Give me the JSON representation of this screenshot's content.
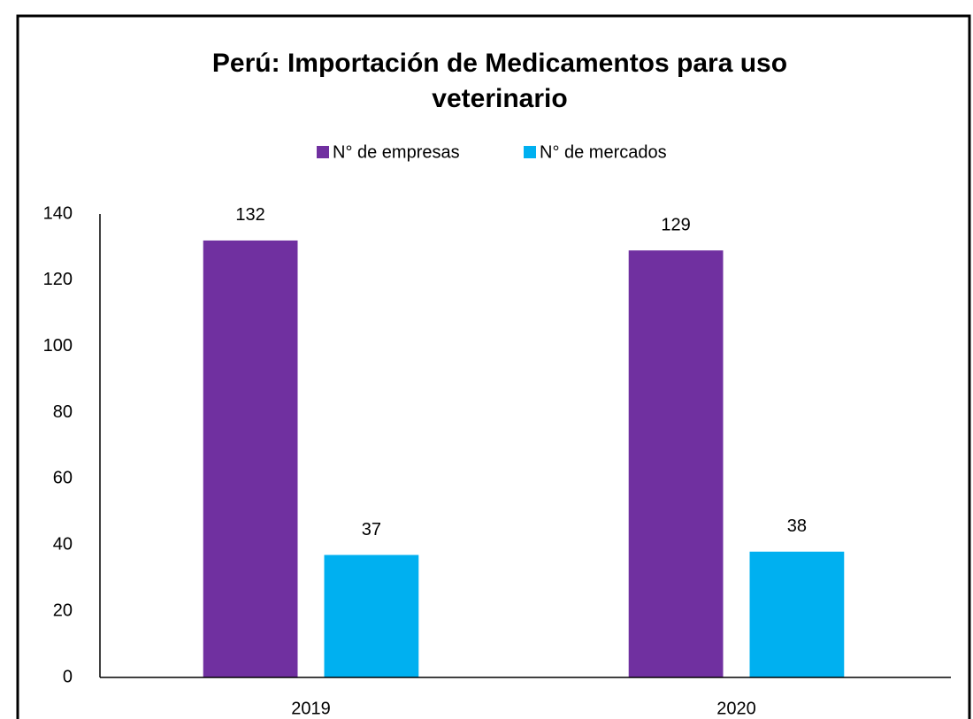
{
  "chart_data": {
    "type": "bar",
    "title": [
      "Perú: Importación de Medicamentos para uso",
      "veterinario"
    ],
    "categories": [
      "2019",
      "2020"
    ],
    "series": [
      {
        "name": "N° de empresas",
        "color": "#7030a0",
        "values": [
          132,
          129
        ]
      },
      {
        "name": "N° de mercados",
        "color": "#00b0f0",
        "values": [
          37,
          38
        ]
      }
    ],
    "ylim": [
      0,
      140
    ],
    "yticks": [
      0,
      20,
      40,
      60,
      80,
      100,
      120,
      140
    ],
    "grid": false,
    "legend": "top",
    "data_labels": true
  }
}
